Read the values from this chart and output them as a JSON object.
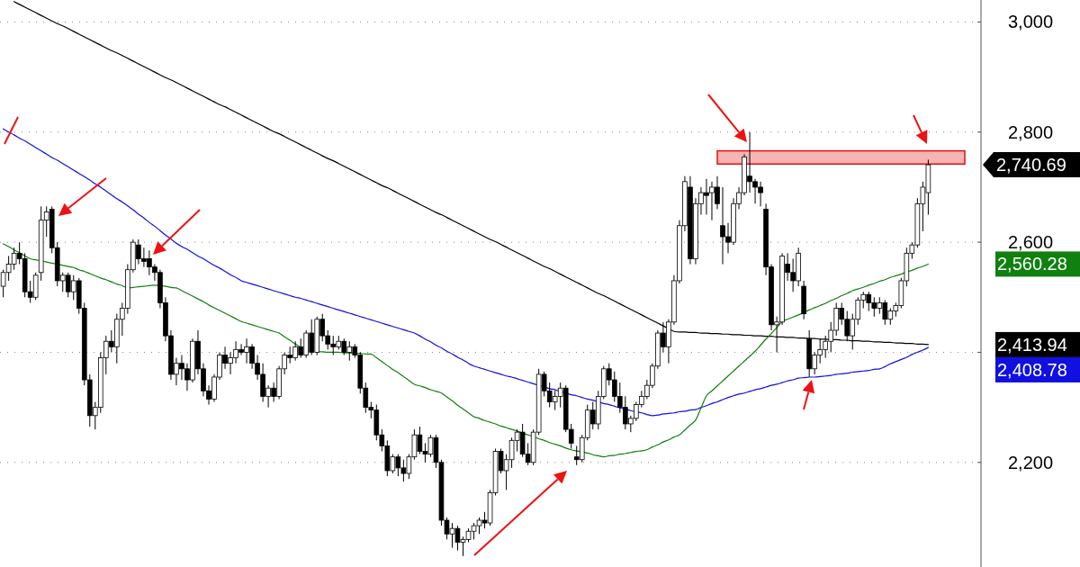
{
  "chart_data": {
    "type": "candlestick",
    "categories": [
      null,
      null,
      null,
      null,
      null,
      null,
      null,
      null,
      null,
      null,
      null,
      null,
      null,
      null,
      null,
      null,
      null,
      null,
      null,
      null,
      null,
      null,
      null,
      null,
      null,
      null,
      null,
      null,
      null,
      null,
      null,
      null,
      null,
      null,
      null,
      null,
      null,
      null,
      null,
      null,
      null,
      null,
      null,
      null,
      null,
      null,
      null,
      null,
      null,
      null,
      null,
      null,
      null,
      null,
      null,
      null,
      null,
      null,
      null,
      null,
      null,
      null,
      null,
      null,
      null,
      null,
      null,
      null,
      null,
      null,
      null,
      null,
      null,
      null,
      null,
      null,
      null,
      null,
      null,
      null,
      null,
      null,
      null,
      null,
      null,
      null,
      null,
      null,
      null,
      null,
      null,
      null,
      null,
      null,
      null,
      null,
      null,
      null,
      null,
      null,
      null,
      null,
      null,
      null,
      null,
      null,
      null,
      null,
      null,
      null,
      null,
      null,
      null,
      null,
      null,
      null,
      null,
      null,
      null,
      null,
      null,
      null,
      null,
      null,
      null,
      null,
      null,
      null,
      null,
      null,
      null,
      null,
      null,
      null,
      null,
      null,
      null,
      null,
      null,
      null,
      null,
      null,
      null,
      null,
      null,
      null,
      null,
      null,
      null,
      null,
      null,
      null,
      null,
      null,
      null,
      null,
      null,
      null,
      null,
      null,
      null,
      null,
      null,
      null,
      null,
      null,
      null,
      null,
      null,
      null,
      null,
      null
    ],
    "ohlc": [
      [
        2520,
        2550,
        2500,
        2545
      ],
      [
        2545,
        2575,
        2530,
        2560
      ],
      [
        2560,
        2590,
        2550,
        2580
      ],
      [
        2580,
        2600,
        2560,
        2570
      ],
      [
        2570,
        2580,
        2500,
        2510
      ],
      [
        2510,
        2530,
        2490,
        2500
      ],
      [
        2500,
        2545,
        2495,
        2540
      ],
      [
        2545,
        2665,
        2530,
        2640
      ],
      [
        2640,
        2665,
        2610,
        2655
      ],
      [
        2660,
        2665,
        2580,
        2590
      ],
      [
        2590,
        2600,
        2520,
        2530
      ],
      [
        2530,
        2545,
        2510,
        2540
      ],
      [
        2540,
        2545,
        2500,
        2510
      ],
      [
        2510,
        2540,
        2495,
        2530
      ],
      [
        2530,
        2535,
        2470,
        2480
      ],
      [
        2480,
        2490,
        2340,
        2350
      ],
      [
        2350,
        2360,
        2265,
        2285
      ],
      [
        2285,
        2310,
        2260,
        2300
      ],
      [
        2300,
        2400,
        2290,
        2390
      ],
      [
        2390,
        2430,
        2360,
        2420
      ],
      [
        2420,
        2440,
        2400,
        2410
      ],
      [
        2410,
        2470,
        2380,
        2460
      ],
      [
        2460,
        2490,
        2430,
        2480
      ],
      [
        2480,
        2560,
        2470,
        2550
      ],
      [
        2550,
        2605,
        2545,
        2600
      ],
      [
        2595,
        2605,
        2560,
        2570
      ],
      [
        2570,
        2590,
        2555,
        2565
      ],
      [
        2570,
        2585,
        2540,
        2555
      ],
      [
        2555,
        2560,
        2530,
        2545
      ],
      [
        2545,
        2550,
        2480,
        2490
      ],
      [
        2490,
        2500,
        2420,
        2430
      ],
      [
        2430,
        2440,
        2350,
        2360
      ],
      [
        2360,
        2390,
        2340,
        2380
      ],
      [
        2380,
        2395,
        2350,
        2370
      ],
      [
        2370,
        2380,
        2330,
        2350
      ],
      [
        2350,
        2425,
        2345,
        2420
      ],
      [
        2420,
        2440,
        2360,
        2370
      ],
      [
        2370,
        2380,
        2320,
        2330
      ],
      [
        2330,
        2340,
        2305,
        2315
      ],
      [
        2315,
        2360,
        2310,
        2355
      ],
      [
        2355,
        2400,
        2350,
        2395
      ],
      [
        2395,
        2410,
        2370,
        2380
      ],
      [
        2380,
        2400,
        2360,
        2390
      ],
      [
        2390,
        2420,
        2380,
        2405
      ],
      [
        2405,
        2415,
        2395,
        2400
      ],
      [
        2400,
        2425,
        2380,
        2410
      ],
      [
        2410,
        2415,
        2370,
        2380
      ],
      [
        2380,
        2395,
        2350,
        2360
      ],
      [
        2360,
        2380,
        2310,
        2320
      ],
      [
        2320,
        2340,
        2300,
        2335
      ],
      [
        2335,
        2345,
        2310,
        2320
      ],
      [
        2320,
        2375,
        2315,
        2370
      ],
      [
        2370,
        2400,
        2360,
        2395
      ],
      [
        2395,
        2410,
        2380,
        2390
      ],
      [
        2390,
        2420,
        2385,
        2410
      ],
      [
        2410,
        2425,
        2390,
        2395
      ],
      [
        2395,
        2440,
        2390,
        2435
      ],
      [
        2435,
        2460,
        2395,
        2400
      ],
      [
        2400,
        2465,
        2395,
        2460
      ],
      [
        2460,
        2470,
        2420,
        2430
      ],
      [
        2430,
        2440,
        2405,
        2415
      ],
      [
        2415,
        2430,
        2395,
        2410
      ],
      [
        2410,
        2430,
        2405,
        2420
      ],
      [
        2420,
        2425,
        2395,
        2400
      ],
      [
        2400,
        2420,
        2385,
        2410
      ],
      [
        2410,
        2415,
        2390,
        2395
      ],
      [
        2395,
        2400,
        2325,
        2335
      ],
      [
        2335,
        2345,
        2290,
        2300
      ],
      [
        2300,
        2310,
        2280,
        2295
      ],
      [
        2295,
        2305,
        2240,
        2250
      ],
      [
        2250,
        2260,
        2220,
        2230
      ],
      [
        2230,
        2240,
        2175,
        2185
      ],
      [
        2185,
        2215,
        2180,
        2210
      ],
      [
        2210,
        2215,
        2175,
        2190
      ],
      [
        2190,
        2205,
        2165,
        2180
      ],
      [
        2180,
        2215,
        2170,
        2210
      ],
      [
        2210,
        2260,
        2205,
        2250
      ],
      [
        2250,
        2265,
        2215,
        2220
      ],
      [
        2220,
        2235,
        2200,
        2215
      ],
      [
        2215,
        2250,
        2210,
        2245
      ],
      [
        2245,
        2250,
        2190,
        2200
      ],
      [
        2200,
        2205,
        2085,
        2095
      ],
      [
        2095,
        2100,
        2060,
        2070
      ],
      [
        2070,
        2090,
        2045,
        2080
      ],
      [
        2080,
        2085,
        2040,
        2055
      ],
      [
        2055,
        2065,
        2030,
        2060
      ],
      [
        2060,
        2080,
        2055,
        2075
      ],
      [
        2075,
        2090,
        2060,
        2085
      ],
      [
        2085,
        2100,
        2070,
        2095
      ],
      [
        2095,
        2110,
        2080,
        2090
      ],
      [
        2090,
        2150,
        2085,
        2145
      ],
      [
        2145,
        2225,
        2140,
        2220
      ],
      [
        2220,
        2225,
        2180,
        2185
      ],
      [
        2185,
        2215,
        2150,
        2205
      ],
      [
        2205,
        2245,
        2190,
        2240
      ],
      [
        2240,
        2260,
        2220,
        2255
      ],
      [
        2255,
        2270,
        2210,
        2215
      ],
      [
        2215,
        2235,
        2195,
        2200
      ],
      [
        2200,
        2260,
        2195,
        2255
      ],
      [
        2255,
        2370,
        2250,
        2360
      ],
      [
        2360,
        2365,
        2320,
        2330
      ],
      [
        2330,
        2345,
        2300,
        2310
      ],
      [
        2310,
        2330,
        2295,
        2320
      ],
      [
        2320,
        2345,
        2300,
        2335
      ],
      [
        2335,
        2340,
        2255,
        2260
      ],
      [
        2260,
        2270,
        2225,
        2235
      ],
      [
        2210,
        2230,
        2195,
        2205
      ],
      [
        2205,
        2250,
        2200,
        2245
      ],
      [
        2245,
        2305,
        2240,
        2295
      ],
      [
        2295,
        2310,
        2260,
        2270
      ],
      [
        2270,
        2330,
        2260,
        2320
      ],
      [
        2320,
        2375,
        2315,
        2370
      ],
      [
        2370,
        2380,
        2340,
        2350
      ],
      [
        2350,
        2365,
        2310,
        2320
      ],
      [
        2320,
        2345,
        2290,
        2300
      ],
      [
        2300,
        2320,
        2260,
        2270
      ],
      [
        2270,
        2285,
        2255,
        2280
      ],
      [
        2280,
        2310,
        2275,
        2305
      ],
      [
        2305,
        2330,
        2300,
        2320
      ],
      [
        2320,
        2350,
        2315,
        2340
      ],
      [
        2340,
        2380,
        2335,
        2375
      ],
      [
        2375,
        2440,
        2370,
        2435
      ],
      [
        2435,
        2455,
        2400,
        2410
      ],
      [
        2410,
        2460,
        2380,
        2455
      ],
      [
        2455,
        2540,
        2450,
        2530
      ],
      [
        2530,
        2640,
        2525,
        2630
      ],
      [
        2630,
        2720,
        2620,
        2710
      ],
      [
        2700,
        2720,
        2560,
        2570
      ],
      [
        2570,
        2680,
        2560,
        2670
      ],
      [
        2670,
        2700,
        2650,
        2690
      ],
      [
        2690,
        2715,
        2650,
        2685
      ],
      [
        2690,
        2710,
        2640,
        2700
      ],
      [
        2700,
        2720,
        2660,
        2670
      ],
      [
        2630,
        2700,
        2560,
        2610
      ],
      [
        2610,
        2635,
        2580,
        2600
      ],
      [
        2600,
        2680,
        2595,
        2670
      ],
      [
        2670,
        2700,
        2660,
        2690
      ],
      [
        2690,
        2760,
        2685,
        2755
      ],
      [
        2720,
        2800,
        2690,
        2710
      ],
      [
        2710,
        2715,
        2670,
        2700
      ],
      [
        2700,
        2710,
        2665,
        2690
      ],
      [
        2660,
        2670,
        2540,
        2555
      ],
      [
        2555,
        2560,
        2440,
        2450
      ],
      [
        2450,
        2465,
        2400,
        2455
      ],
      [
        2455,
        2580,
        2450,
        2575
      ],
      [
        2560,
        2580,
        2530,
        2545
      ],
      [
        2545,
        2570,
        2510,
        2530
      ],
      [
        2530,
        2590,
        2520,
        2580
      ],
      [
        2520,
        2530,
        2460,
        2470
      ],
      [
        2425,
        2440,
        2355,
        2370
      ],
      [
        2370,
        2400,
        2360,
        2395
      ],
      [
        2395,
        2425,
        2380,
        2405
      ],
      [
        2405,
        2430,
        2390,
        2420
      ],
      [
        2420,
        2455,
        2400,
        2440
      ],
      [
        2440,
        2490,
        2430,
        2480
      ],
      [
        2480,
        2490,
        2450,
        2460
      ],
      [
        2460,
        2475,
        2420,
        2430
      ],
      [
        2430,
        2470,
        2405,
        2460
      ],
      [
        2460,
        2500,
        2450,
        2495
      ],
      [
        2495,
        2510,
        2480,
        2505
      ],
      [
        2505,
        2510,
        2475,
        2490
      ],
      [
        2490,
        2500,
        2465,
        2480
      ],
      [
        2480,
        2500,
        2470,
        2490
      ],
      [
        2490,
        2495,
        2450,
        2460
      ],
      [
        2460,
        2480,
        2450,
        2475
      ],
      [
        2475,
        2490,
        2465,
        2485
      ],
      [
        2485,
        2535,
        2480,
        2530
      ],
      [
        2530,
        2590,
        2520,
        2580
      ],
      [
        2580,
        2600,
        2570,
        2595
      ],
      [
        2595,
        2680,
        2590,
        2670
      ],
      [
        2670,
        2710,
        2620,
        2700
      ],
      [
        2690,
        2750,
        2650,
        2740.69
      ]
    ],
    "series": [
      {
        "type": "line",
        "color": "#000000",
        "values": [
          null,
          null,
          3037,
          3032,
          3027,
          3022,
          3017,
          3012,
          3007,
          3002,
          2997,
          2993,
          2988,
          2983,
          2978,
          2973,
          2968,
          2963,
          2958,
          2953,
          2948,
          2944,
          2939,
          2934,
          2929,
          2924,
          2919,
          2914,
          2909,
          2904,
          2899,
          2895,
          2890,
          2885,
          2880,
          2875,
          2870,
          2865,
          2860,
          2855,
          2850,
          2846,
          2841,
          2836,
          2831,
          2826,
          2821,
          2816,
          2811,
          2806,
          2801,
          2797,
          2792,
          2787,
          2782,
          2777,
          2772,
          2767,
          2762,
          2757,
          2752,
          2748,
          2743,
          2738,
          2733,
          2728,
          2723,
          2718,
          2713,
          2708,
          2703,
          2699,
          2694,
          2689,
          2684,
          2679,
          2674,
          2669,
          2664,
          2659,
          2654,
          2650,
          2645,
          2640,
          2635,
          2630,
          2625,
          2620,
          2615,
          2610,
          2605,
          2601,
          2596,
          2591,
          2586,
          2581,
          2576,
          2571,
          2566,
          2561,
          2556,
          2552,
          2547,
          2542,
          2537,
          2532,
          2527,
          2522,
          2517,
          2512,
          2507,
          2503,
          2498,
          2493,
          2488,
          2483,
          2478,
          2473,
          2468,
          2463,
          2458,
          2453,
          2448,
          2443,
          2438,
          2437,
          2437,
          2436,
          2436,
          2435,
          2435,
          2434,
          2434,
          2433,
          2433,
          2432,
          2432,
          2431,
          2431,
          2430,
          2430,
          2429,
          2429,
          2428,
          2428,
          2427,
          2427,
          2426,
          2426,
          2425,
          2425,
          2424,
          2424,
          2423,
          2423,
          2422,
          2422,
          2421,
          2421,
          2420,
          2420,
          2419,
          2419,
          2418,
          2418,
          2417,
          2417,
          2416,
          2416,
          2415,
          2415,
          2413.94
        ]
      },
      {
        "type": "line",
        "color": "#1010e0",
        "values": [
          2806,
          2800,
          2795,
          2789,
          2784,
          2778,
          2772,
          2766,
          2760,
          2754,
          2749,
          2743,
          2737,
          2731,
          2725,
          2719,
          2713,
          2706,
          2700,
          2693,
          2686,
          2679,
          2673,
          2666,
          2659,
          2651,
          2644,
          2636,
          2629,
          2621,
          2613,
          2606,
          2598,
          2592,
          2587,
          2581,
          2575,
          2570,
          2564,
          2558,
          2553,
          2547,
          2541,
          2536,
          2530,
          2527,
          2524,
          2521,
          2518,
          2515,
          2512,
          2509,
          2506,
          2503,
          2500,
          2498,
          2495,
          2492,
          2489,
          2486,
          2483,
          2480,
          2477,
          2474,
          2471,
          2468,
          2465,
          2462,
          2459,
          2456,
          2453,
          2450,
          2447,
          2444,
          2441,
          2438,
          2435,
          2430,
          2424,
          2419,
          2413,
          2408,
          2402,
          2397,
          2391,
          2386,
          2380,
          2375,
          2372,
          2369,
          2366,
          2363,
          2360,
          2357,
          2355,
          2352,
          2349,
          2346,
          2343,
          2340,
          2337,
          2334,
          2332,
          2329,
          2326,
          2323,
          2321,
          2318,
          2315,
          2313,
          2310,
          2307,
          2305,
          2302,
          2299,
          2297,
          2294,
          2292,
          2290,
          2287,
          2285,
          2286,
          2288,
          2289,
          2290,
          2292,
          2293,
          2295,
          2296,
          2300,
          2303,
          2307,
          2310,
          2314,
          2318,
          2321,
          2324,
          2326,
          2329,
          2332,
          2334,
          2337,
          2340,
          2342,
          2345,
          2348,
          2350,
          2353,
          2354,
          2355,
          2355,
          2356,
          2357,
          2358,
          2360,
          2361,
          2362,
          2364,
          2365,
          2366,
          2367,
          2369,
          2370,
          2374,
          2379,
          2383,
          2387,
          2391,
          2396,
          2400,
          2404,
          2408.78
        ]
      },
      {
        "type": "line",
        "color": "#108010",
        "values": [
          2597,
          2592,
          2586,
          2581,
          2575,
          2570,
          2568,
          2566,
          2564,
          2562,
          2560,
          2558,
          2556,
          2554,
          2550,
          2547,
          2543,
          2539,
          2535,
          2532,
          2528,
          2524,
          2521,
          2517,
          2518,
          2519,
          2520,
          2521,
          2522,
          2521,
          2520,
          2518,
          2517,
          2512,
          2507,
          2502,
          2497,
          2492,
          2486,
          2481,
          2476,
          2471,
          2466,
          2461,
          2456,
          2453,
          2450,
          2447,
          2444,
          2441,
          2438,
          2435,
          2428,
          2422,
          2415,
          2409,
          null,
          null,
          2401,
          2401,
          2400,
          2400,
          2400,
          2399,
          2399,
          2398,
          2398,
          2397,
          2397,
          2390,
          2383,
          2376,
          2369,
          2363,
          2356,
          2349,
          2342,
          2339,
          2336,
          2332,
          2329,
          2326,
          2319,
          2312,
          2304,
          2297,
          2290,
          2283,
          2280,
          2276,
          2273,
          2270,
          2266,
          2263,
          2260,
          2257,
          2253,
          2250,
          2247,
          2243,
          2240,
          2236,
          2233,
          2230,
          2226,
          2223,
          2221,
          2219,
          2217,
          2214,
          2212,
          2210,
          2212,
          2213,
          2215,
          2216,
          2218,
          2220,
          2221,
          2223,
          2228,
          2232,
          2237,
          2241,
          2246,
          2250,
          2259,
          2268,
          2277,
          2299,
          2321,
          2330,
          2339,
          2348,
          2357,
          2366,
          2375,
          2384,
          2393,
          2402,
          2413,
          2424,
          2434,
          2445,
          2456,
          2460,
          2464,
          2468,
          2472,
          2477,
          2481,
          2485,
          2489,
          2494,
          2498,
          2503,
          2507,
          2512,
          2515,
          2518,
          2522,
          2525,
          2529,
          2532,
          2536,
          2539,
          2542,
          2546,
          2549,
          2553,
          2556,
          2560.28
        ]
      }
    ],
    "ylim": [
      2010,
      3040
    ],
    "yticks": [
      {
        "value": 2200,
        "label": "2,200"
      },
      {
        "value": 2400,
        "label": null
      },
      {
        "value": 2600,
        "label": "2,600"
      },
      {
        "value": 2800,
        "label": "2,800"
      },
      {
        "value": 3000,
        "label": "3,000"
      }
    ],
    "grid": "y",
    "bands": [
      {
        "axis": "y",
        "from": 2742,
        "to": 2766,
        "color": "#f7b4b4"
      }
    ],
    "annotations": [
      "2,740.69",
      "2,560.28",
      "2,413.94",
      "2,408.78"
    ]
  }
}
